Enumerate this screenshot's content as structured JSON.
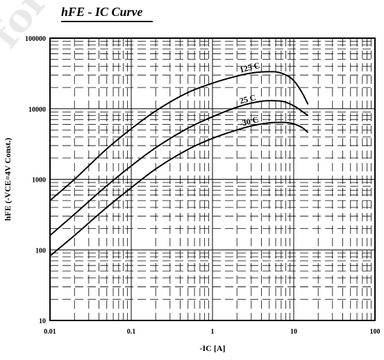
{
  "page": {
    "watermark": "for"
  },
  "chart_data": {
    "type": "line",
    "title": "hFE - IC Curve",
    "xlabel": "-IC [A]",
    "ylabel": "hFE  (-VCE=4V  Const.)",
    "xscale": "log",
    "yscale": "log",
    "xlim": [
      0.01,
      100
    ],
    "ylim": [
      10,
      100000
    ],
    "grid": true,
    "x_ticks": [
      "0.01",
      "0.1",
      "1",
      "10",
      "100"
    ],
    "y_ticks": [
      "10",
      "100",
      "1000",
      "10000",
      "100000"
    ],
    "series": [
      {
        "name": "125 C",
        "x": [
          0.01,
          0.02,
          0.05,
          0.1,
          0.2,
          0.5,
          1,
          2,
          3,
          5,
          7,
          10,
          13,
          15
        ],
        "y": [
          500,
          1000,
          2700,
          5200,
          9300,
          17000,
          23000,
          29000,
          32000,
          33500,
          32000,
          25000,
          16000,
          11500
        ]
      },
      {
        "name": "25 C",
        "x": [
          0.01,
          0.02,
          0.05,
          0.1,
          0.2,
          0.5,
          1,
          2,
          3,
          5,
          7,
          10,
          13,
          15
        ],
        "y": [
          160,
          320,
          810,
          1550,
          2800,
          5300,
          7700,
          10500,
          12000,
          13000,
          12800,
          11000,
          9000,
          8000
        ]
      },
      {
        "name": "-30 C",
        "x": [
          0.01,
          0.02,
          0.05,
          0.1,
          0.2,
          0.5,
          1,
          2,
          3,
          5,
          7,
          10,
          13,
          15
        ],
        "y": [
          82,
          160,
          400,
          760,
          1400,
          2650,
          3800,
          5000,
          5700,
          6300,
          6400,
          6100,
          5300,
          4600
        ]
      }
    ]
  }
}
